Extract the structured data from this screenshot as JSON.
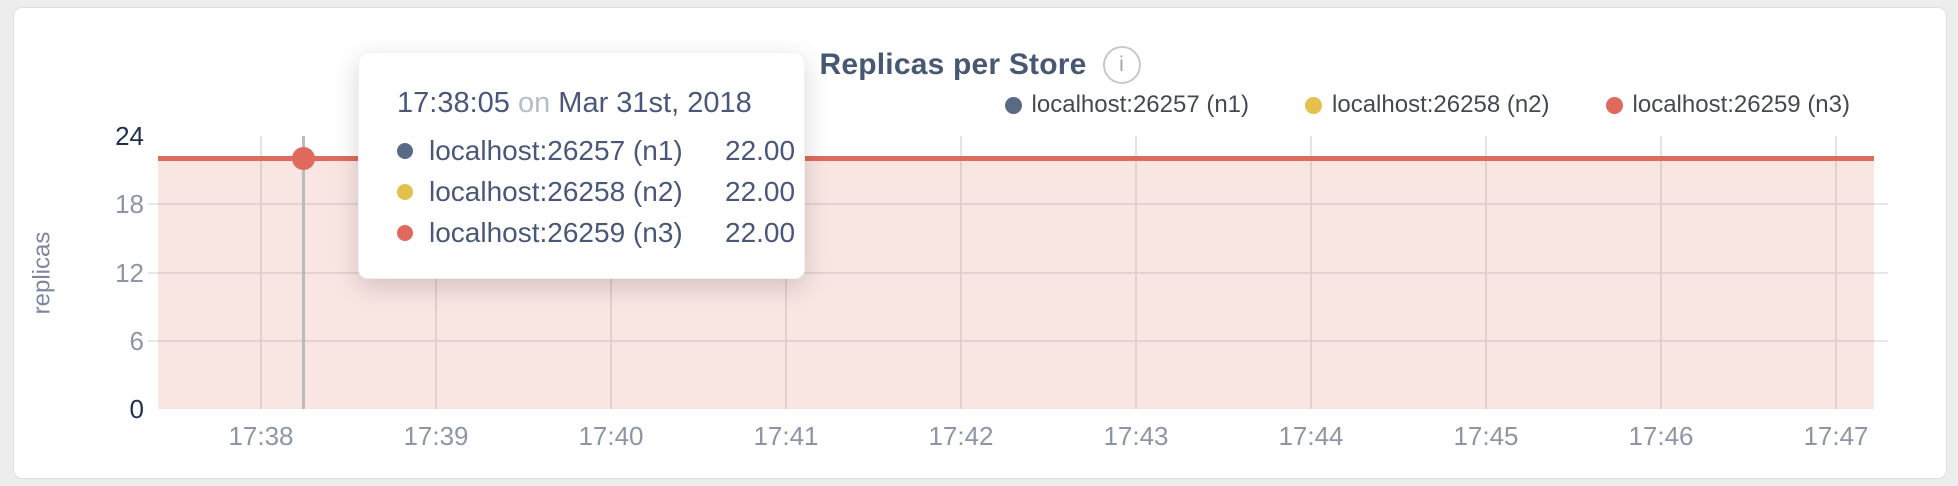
{
  "card": {
    "title": "Replicas per Store",
    "info_glyph": "i"
  },
  "legend": [
    {
      "label": "localhost:26257 (n1)",
      "color": "#5a6a85"
    },
    {
      "label": "localhost:26258 (n2)",
      "color": "#e4c04d"
    },
    {
      "label": "localhost:26259 (n3)",
      "color": "#df695c"
    }
  ],
  "tooltip": {
    "time": "17:38:05",
    "conjunction": "on",
    "date": "Mar 31st, 2018",
    "rows": [
      {
        "label": "localhost:26257 (n1)",
        "value": "22.00",
        "color": "#5a6a85"
      },
      {
        "label": "localhost:26258 (n2)",
        "value": "22.00",
        "color": "#e4c04d"
      },
      {
        "label": "localhost:26259 (n3)",
        "value": "22.00",
        "color": "#df695c"
      }
    ]
  },
  "chart_data": {
    "type": "area",
    "title": "Replicas per Store",
    "ylabel": "replicas",
    "ylim": [
      0,
      24
    ],
    "y_ticks": [
      0,
      6,
      12,
      18,
      24
    ],
    "x_ticks": [
      "17:38",
      "17:39",
      "17:40",
      "17:41",
      "17:42",
      "17:43",
      "17:44",
      "17:45",
      "17:46",
      "17:47"
    ],
    "grid": true,
    "legend_position": "top-right",
    "series": [
      {
        "name": "localhost:26257 (n1)",
        "color": "#5a6a85",
        "values": [
          22,
          22,
          22,
          22,
          22,
          22,
          22,
          22,
          22,
          22
        ]
      },
      {
        "name": "localhost:26258 (n2)",
        "color": "#e4c04d",
        "values": [
          22,
          22,
          22,
          22,
          22,
          22,
          22,
          22,
          22,
          22
        ]
      },
      {
        "name": "localhost:26259 (n3)",
        "color": "#df695c",
        "values": [
          22,
          22,
          22,
          22,
          22,
          22,
          22,
          22,
          22,
          22
        ]
      }
    ],
    "hover_point": {
      "time": "17:38:05",
      "date": "Mar 31st, 2018",
      "value": 22
    }
  }
}
